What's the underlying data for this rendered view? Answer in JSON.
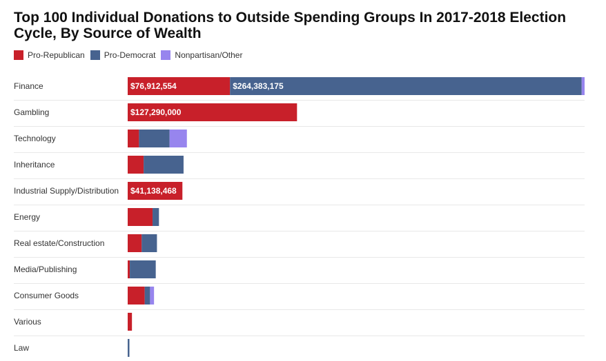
{
  "chart_data": {
    "type": "bar",
    "orientation": "horizontal",
    "stacked": true,
    "title": "Top 100 Individual Donations to Outside Spending Groups In 2017-2018 Election Cycle, By Source of Wealth",
    "legend_position": "top-left",
    "categories": [
      "Finance",
      "Gambling",
      "Technology",
      "Inheritance",
      "Industrial Supply/Distribution",
      "Energy",
      "Real estate/Construction",
      "Media/Publishing",
      "Consumer Goods",
      "Various",
      "Law"
    ],
    "series": [
      {
        "name": "Pro-Republican",
        "color": "#c8202a",
        "values": [
          76912554,
          127290000,
          8500000,
          12000000,
          41138468,
          18700000,
          10500000,
          1600000,
          12800000,
          3200000,
          0
        ],
        "labels": [
          "$76,912,554",
          "$127,290,000",
          "",
          "",
          "$41,138,468",
          "",
          "",
          "",
          "",
          "",
          ""
        ]
      },
      {
        "name": "Pro-Democrat",
        "color": "#47638f",
        "values": [
          264383175,
          0,
          23000000,
          30000000,
          0,
          4800000,
          11500000,
          19500000,
          4000000,
          0,
          1300000
        ],
        "labels": [
          "$264,383,175",
          "",
          "",
          "",
          "",
          "",
          "",
          "",
          "",
          "",
          ""
        ]
      },
      {
        "name": "Nonpartisan/Other",
        "color": "#9785ee",
        "values": [
          2200000,
          0,
          13000000,
          0,
          0,
          0,
          0,
          0,
          3000000,
          0,
          0
        ],
        "labels": [
          "",
          "",
          "",
          "",
          "",
          "",
          "",
          "",
          "",
          "",
          ""
        ]
      }
    ],
    "xlim": [
      0,
      343495729
    ],
    "grid": false
  }
}
